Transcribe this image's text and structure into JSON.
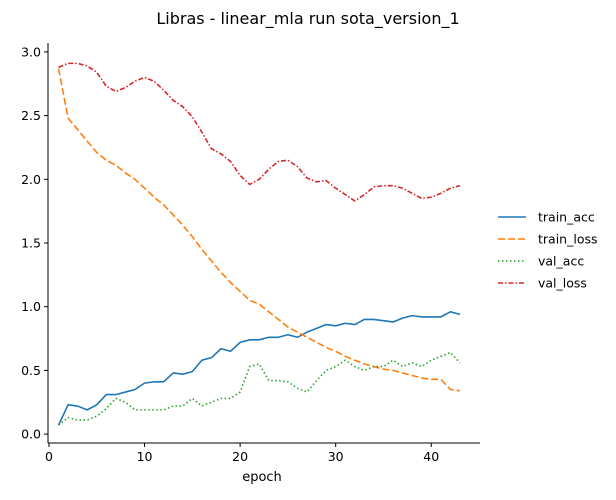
{
  "chart_data": {
    "type": "line",
    "title": "Libras - linear_mla run sota_version_1",
    "xlabel": "epoch",
    "ylabel": "",
    "xlim": [
      -0.1,
      45.1
    ],
    "ylim": [
      -0.07,
      3.07
    ],
    "xticks": [
      0,
      10,
      20,
      30,
      40
    ],
    "yticks": [
      0.0,
      0.5,
      1.0,
      1.5,
      2.0,
      2.5,
      3.0
    ],
    "x": [
      1,
      2,
      3,
      4,
      5,
      6,
      7,
      8,
      9,
      10,
      11,
      12,
      13,
      14,
      15,
      16,
      17,
      18,
      19,
      20,
      21,
      22,
      23,
      24,
      25,
      26,
      27,
      28,
      29,
      30,
      31,
      32,
      33,
      34,
      35,
      36,
      37,
      38,
      39,
      40,
      41,
      42,
      43
    ],
    "series": [
      {
        "name": "train_acc",
        "color": "#1f77b4",
        "dash": "",
        "values": [
          0.07,
          0.23,
          0.22,
          0.19,
          0.23,
          0.31,
          0.31,
          0.33,
          0.35,
          0.4,
          0.41,
          0.41,
          0.48,
          0.47,
          0.49,
          0.58,
          0.6,
          0.67,
          0.65,
          0.72,
          0.74,
          0.74,
          0.76,
          0.76,
          0.78,
          0.76,
          0.8,
          0.83,
          0.86,
          0.85,
          0.87,
          0.86,
          0.9,
          0.9,
          0.89,
          0.88,
          0.91,
          0.93,
          0.92,
          0.92,
          0.92,
          0.96,
          0.94
        ]
      },
      {
        "name": "train_loss",
        "color": "#ff7f0e",
        "dash": "7,3",
        "values": [
          2.87,
          2.48,
          2.39,
          2.3,
          2.21,
          2.15,
          2.11,
          2.05,
          2.0,
          1.93,
          1.86,
          1.8,
          1.72,
          1.64,
          1.55,
          1.45,
          1.36,
          1.27,
          1.19,
          1.12,
          1.05,
          1.02,
          0.96,
          0.9,
          0.84,
          0.8,
          0.76,
          0.72,
          0.68,
          0.65,
          0.61,
          0.58,
          0.55,
          0.53,
          0.51,
          0.5,
          0.48,
          0.46,
          0.44,
          0.43,
          0.43,
          0.35,
          0.34
        ]
      },
      {
        "name": "val_acc",
        "color": "#2ca02c",
        "dash": "1.5,2.5",
        "values": [
          0.07,
          0.13,
          0.11,
          0.11,
          0.14,
          0.2,
          0.28,
          0.25,
          0.19,
          0.19,
          0.19,
          0.19,
          0.22,
          0.22,
          0.28,
          0.22,
          0.25,
          0.28,
          0.28,
          0.33,
          0.53,
          0.55,
          0.42,
          0.42,
          0.41,
          0.36,
          0.33,
          0.42,
          0.5,
          0.53,
          0.58,
          0.53,
          0.5,
          0.53,
          0.53,
          0.58,
          0.53,
          0.56,
          0.53,
          0.58,
          0.61,
          0.64,
          0.56
        ]
      },
      {
        "name": "val_loss",
        "color": "#d62728",
        "dash": "5,2,1.5,2",
        "values": [
          2.88,
          2.91,
          2.91,
          2.89,
          2.84,
          2.73,
          2.69,
          2.72,
          2.77,
          2.8,
          2.77,
          2.7,
          2.62,
          2.57,
          2.49,
          2.37,
          2.24,
          2.2,
          2.14,
          2.03,
          1.96,
          2.0,
          2.08,
          2.14,
          2.15,
          2.1,
          2.01,
          1.98,
          1.99,
          1.93,
          1.88,
          1.83,
          1.88,
          1.94,
          1.95,
          1.95,
          1.93,
          1.89,
          1.85,
          1.86,
          1.89,
          1.93,
          1.95
        ]
      }
    ],
    "legend_placement": "right",
    "grid": false
  }
}
